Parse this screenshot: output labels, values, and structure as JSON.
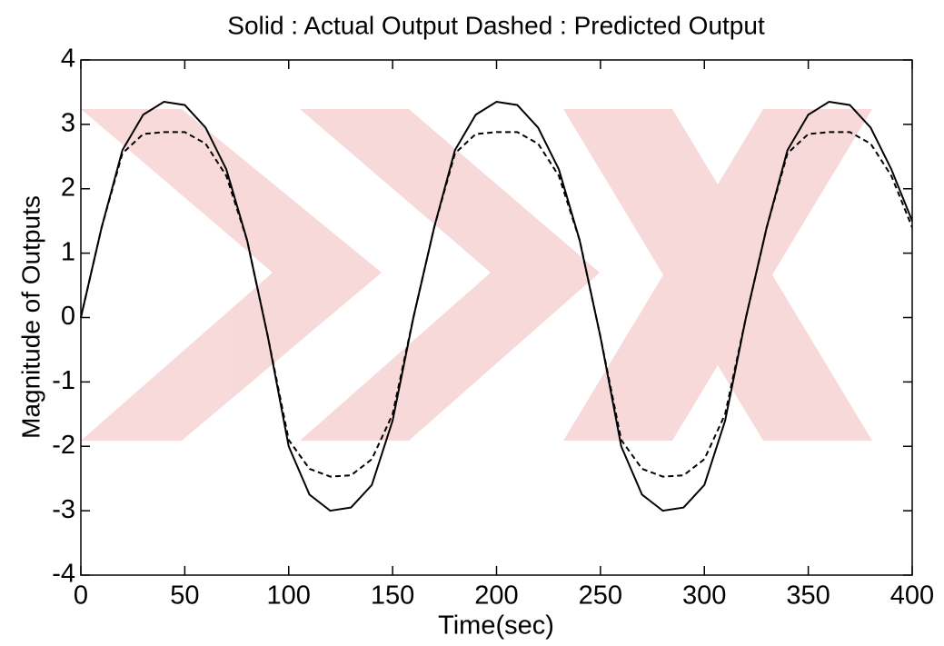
{
  "chart_data": {
    "type": "line",
    "title": "Solid : Actual Output Dashed : Predicted Output",
    "xlabel": "Time(sec)",
    "ylabel": "Magnitude of Outputs",
    "x": [
      0,
      10,
      20,
      30,
      40,
      50,
      60,
      70,
      80,
      90,
      100,
      110,
      120,
      130,
      140,
      150,
      160,
      170,
      180,
      190,
      200,
      210,
      220,
      230,
      240,
      250,
      260,
      270,
      280,
      290,
      300,
      310,
      320,
      330,
      340,
      350,
      360,
      370,
      380,
      390,
      400
    ],
    "series": [
      {
        "color": "#000000",
        "dash": false,
        "values": [
          0,
          1.4,
          2.6,
          3.15,
          3.35,
          3.3,
          2.95,
          2.3,
          1.2,
          -0.3,
          -2.0,
          -2.75,
          -3.0,
          -2.95,
          -2.6,
          -1.6,
          0,
          1.4,
          2.6,
          3.15,
          3.35,
          3.3,
          2.95,
          2.3,
          1.2,
          -0.3,
          -2.0,
          -2.75,
          -3.0,
          -2.95,
          -2.6,
          -1.6,
          0,
          1.4,
          2.6,
          3.15,
          3.35,
          3.3,
          2.95,
          2.3,
          1.5
        ]
      },
      {
        "color": "#000000",
        "dash": true,
        "values": [
          0,
          1.4,
          2.55,
          2.85,
          2.88,
          2.88,
          2.7,
          2.2,
          1.2,
          -0.3,
          -1.9,
          -2.35,
          -2.47,
          -2.45,
          -2.2,
          -1.5,
          0,
          1.4,
          2.55,
          2.85,
          2.88,
          2.88,
          2.7,
          2.2,
          1.2,
          -0.3,
          -1.9,
          -2.35,
          -2.47,
          -2.45,
          -2.2,
          -1.5,
          0,
          1.4,
          2.55,
          2.85,
          2.88,
          2.88,
          2.7,
          2.2,
          1.4
        ]
      }
    ],
    "xlim": [
      0,
      400
    ],
    "xticks": [
      0,
      50,
      100,
      150,
      200,
      250,
      300,
      350,
      400
    ],
    "ylim": [
      -4,
      4
    ],
    "yticks": [
      -4,
      -3,
      -2,
      -1,
      0,
      1,
      2,
      3,
      4
    ],
    "grid": false
  }
}
